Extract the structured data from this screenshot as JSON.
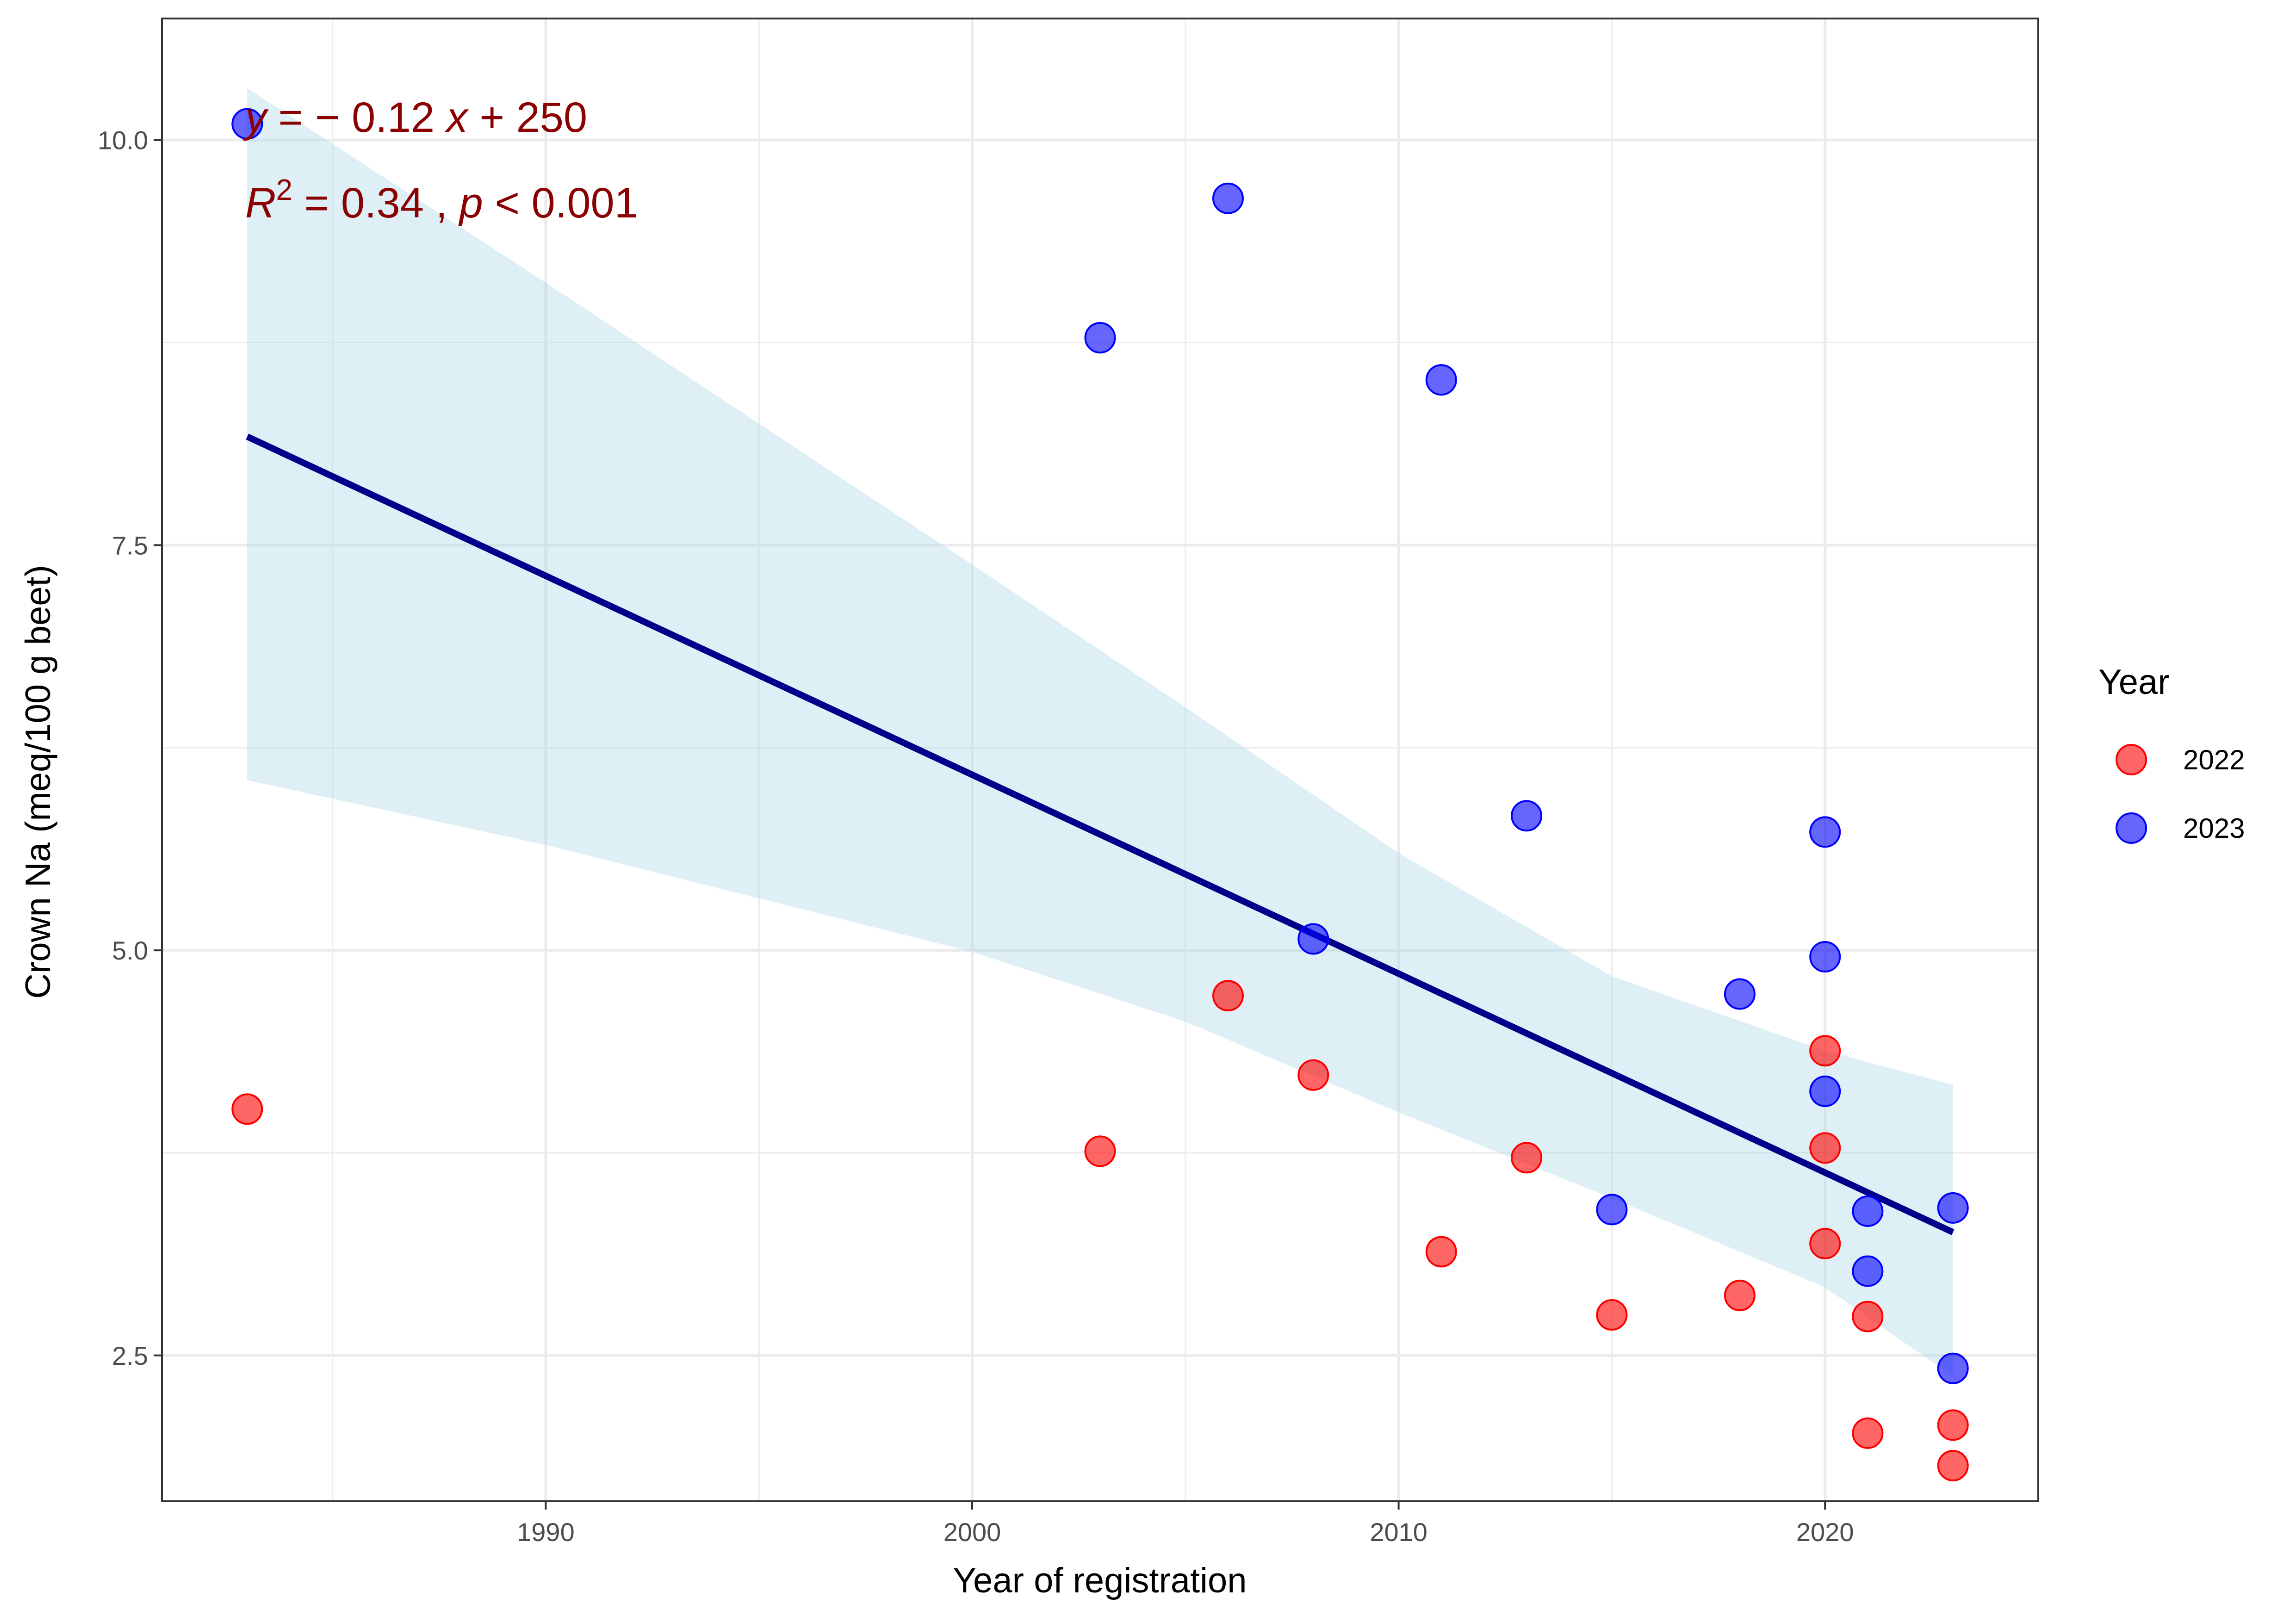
{
  "chart_data": {
    "type": "scatter",
    "xlabel": "Year of registration",
    "ylabel": "Crown Na (meq/100 g beet)",
    "xlim": [
      1981,
      2025
    ],
    "ylim": [
      1.6,
      10.75
    ],
    "x_ticks": [
      1990,
      2000,
      2010,
      2020
    ],
    "x_tick_labels": [
      "1990",
      "2000",
      "2010",
      "2020"
    ],
    "y_ticks": [
      2.5,
      5.0,
      7.5,
      10.0
    ],
    "y_tick_labels": [
      "2.5",
      "5.0",
      "7.5",
      "10.0"
    ],
    "grid": true,
    "legend": {
      "title": "Year",
      "position": "right",
      "entries": [
        {
          "label": "2022",
          "color": "#ff0000"
        },
        {
          "label": "2023",
          "color": "#0000ff"
        }
      ]
    },
    "series": [
      {
        "name": "2022",
        "color": "#ff0000",
        "points": [
          {
            "x": 1983,
            "y": 4.02
          },
          {
            "x": 2003,
            "y": 3.76
          },
          {
            "x": 2006,
            "y": 4.72
          },
          {
            "x": 2008,
            "y": 4.23
          },
          {
            "x": 2011,
            "y": 3.14
          },
          {
            "x": 2013,
            "y": 3.72
          },
          {
            "x": 2015,
            "y": 2.75
          },
          {
            "x": 2018,
            "y": 2.87
          },
          {
            "x": 2020,
            "y": 4.38
          },
          {
            "x": 2020,
            "y": 3.78
          },
          {
            "x": 2020,
            "y": 3.19
          },
          {
            "x": 2021,
            "y": 2.74
          },
          {
            "x": 2021,
            "y": 2.02
          },
          {
            "x": 2023,
            "y": 2.07
          },
          {
            "x": 2023,
            "y": 1.82
          }
        ]
      },
      {
        "name": "2023",
        "color": "#0000ff",
        "points": [
          {
            "x": 1983,
            "y": 10.1
          },
          {
            "x": 2003,
            "y": 8.78
          },
          {
            "x": 2006,
            "y": 9.64
          },
          {
            "x": 2008,
            "y": 5.07
          },
          {
            "x": 2011,
            "y": 8.52
          },
          {
            "x": 2013,
            "y": 5.83
          },
          {
            "x": 2015,
            "y": 3.4
          },
          {
            "x": 2018,
            "y": 4.73
          },
          {
            "x": 2020,
            "y": 5.73
          },
          {
            "x": 2020,
            "y": 4.96
          },
          {
            "x": 2020,
            "y": 4.13
          },
          {
            "x": 2021,
            "y": 3.39
          },
          {
            "x": 2021,
            "y": 3.02
          },
          {
            "x": 2023,
            "y": 3.41
          },
          {
            "x": 2023,
            "y": 2.42
          }
        ]
      }
    ],
    "regression": {
      "color": "#00008b",
      "x": [
        1983,
        2023
      ],
      "y": [
        8.17,
        3.26
      ],
      "ci_color": "#add8e6",
      "ci_upper": [
        {
          "x": 1983,
          "y": 10.32
        },
        {
          "x": 1990,
          "y": 9.12
        },
        {
          "x": 2000,
          "y": 7.38
        },
        {
          "x": 2005,
          "y": 6.5
        },
        {
          "x": 2010,
          "y": 5.6
        },
        {
          "x": 2015,
          "y": 4.84
        },
        {
          "x": 2020,
          "y": 4.38
        },
        {
          "x": 2023,
          "y": 4.17
        }
      ],
      "ci_lower": [
        {
          "x": 1983,
          "y": 6.05
        },
        {
          "x": 1990,
          "y": 5.65
        },
        {
          "x": 2000,
          "y": 4.99
        },
        {
          "x": 2005,
          "y": 4.56
        },
        {
          "x": 2010,
          "y": 4.0
        },
        {
          "x": 2015,
          "y": 3.47
        },
        {
          "x": 2020,
          "y": 2.92
        },
        {
          "x": 2023,
          "y": 2.37
        }
      ]
    },
    "annotation": {
      "color": "#8b0000",
      "eq_y": "y",
      "eq_rest": " = − 0.12 ",
      "eq_x": "x",
      "eq_tail": " + 250",
      "r_label": "R",
      "r_sup": "2",
      "r_rest": " = 0.34 , ",
      "p_label": "p",
      "p_rest": " < 0.001"
    }
  }
}
